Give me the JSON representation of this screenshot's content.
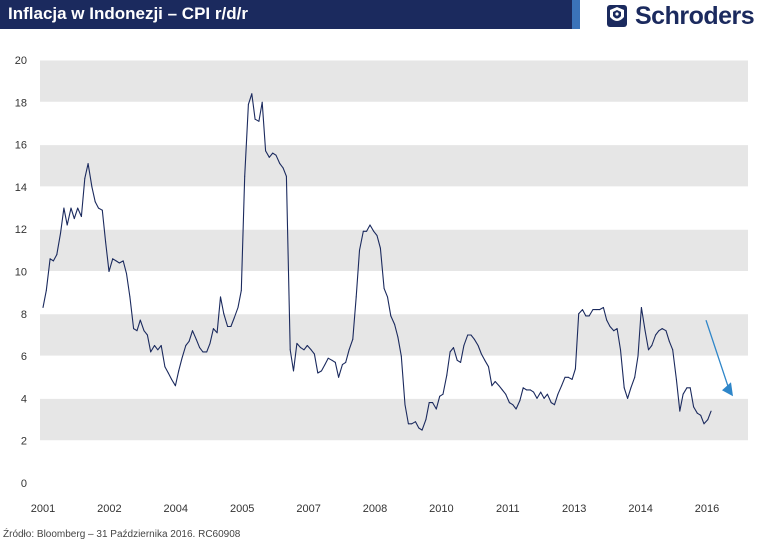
{
  "header": {
    "title": "Inflacja w Indonezji – CPI r/d/r",
    "brand": "Schroders"
  },
  "footer": {
    "source": "Źródło: Bloomberg – 31 Października 2016. RC60908"
  },
  "colors": {
    "header_bg": "#1b2a5e",
    "accent": "#3b73b9",
    "line": "#1b2a5e",
    "band": "#e6e6e6",
    "arrow": "#2e86c9"
  },
  "icons": [
    "crest-icon",
    "arrow-down-icon"
  ],
  "chart_data": {
    "type": "line",
    "title": "Inflacja w Indonezji – CPI r/d/r",
    "xlabel": "",
    "ylabel": "",
    "ylim": [
      0,
      20
    ],
    "yticks": [
      "0",
      "2",
      "4",
      "6",
      "8",
      "10",
      "12",
      "14",
      "16",
      "18",
      "20"
    ],
    "xticks": [
      "2001",
      "2002",
      "2004",
      "2005",
      "2007",
      "2008",
      "2010",
      "2011",
      "2013",
      "2014",
      "2016"
    ],
    "xlim": [
      2001.0,
      2016.83
    ],
    "grid": "alternating horizontal bands",
    "legend": "none",
    "annotation": "downward arrow pointing to latest readings",
    "series": [
      {
        "values": [
          [
            2001.0,
            8.3
          ],
          [
            2001.08,
            9.1
          ],
          [
            2001.17,
            10.6
          ],
          [
            2001.25,
            10.5
          ],
          [
            2001.33,
            10.8
          ],
          [
            2001.42,
            11.8
          ],
          [
            2001.5,
            13.0
          ],
          [
            2001.58,
            12.2
          ],
          [
            2001.67,
            13.0
          ],
          [
            2001.75,
            12.5
          ],
          [
            2001.83,
            13.0
          ],
          [
            2001.92,
            12.6
          ],
          [
            2002.0,
            14.4
          ],
          [
            2002.08,
            15.1
          ],
          [
            2002.17,
            14.0
          ],
          [
            2002.25,
            13.3
          ],
          [
            2002.33,
            13.0
          ],
          [
            2002.42,
            12.9
          ],
          [
            2002.5,
            11.4
          ],
          [
            2002.58,
            10.0
          ],
          [
            2002.67,
            10.6
          ],
          [
            2002.75,
            10.5
          ],
          [
            2002.83,
            10.4
          ],
          [
            2002.92,
            10.5
          ],
          [
            2003.0,
            9.9
          ],
          [
            2003.08,
            8.8
          ],
          [
            2003.17,
            7.3
          ],
          [
            2003.25,
            7.2
          ],
          [
            2003.33,
            7.7
          ],
          [
            2003.42,
            7.2
          ],
          [
            2003.5,
            7.0
          ],
          [
            2003.58,
            6.2
          ],
          [
            2003.67,
            6.5
          ],
          [
            2003.75,
            6.3
          ],
          [
            2003.83,
            6.5
          ],
          [
            2003.92,
            5.5
          ],
          [
            2004.0,
            5.2
          ],
          [
            2004.08,
            4.9
          ],
          [
            2004.17,
            4.6
          ],
          [
            2004.25,
            5.3
          ],
          [
            2004.33,
            5.9
          ],
          [
            2004.42,
            6.5
          ],
          [
            2004.5,
            6.7
          ],
          [
            2004.58,
            7.2
          ],
          [
            2004.67,
            6.8
          ],
          [
            2004.75,
            6.4
          ],
          [
            2004.83,
            6.2
          ],
          [
            2004.92,
            6.2
          ],
          [
            2005.0,
            6.6
          ],
          [
            2005.08,
            7.3
          ],
          [
            2005.17,
            7.1
          ],
          [
            2005.25,
            8.8
          ],
          [
            2005.33,
            8.0
          ],
          [
            2005.42,
            7.4
          ],
          [
            2005.5,
            7.4
          ],
          [
            2005.58,
            7.8
          ],
          [
            2005.67,
            8.3
          ],
          [
            2005.75,
            9.1
          ],
          [
            2005.83,
            14.5
          ],
          [
            2005.92,
            17.9
          ],
          [
            2006.0,
            18.4
          ],
          [
            2006.08,
            17.2
          ],
          [
            2006.17,
            17.1
          ],
          [
            2006.25,
            18.0
          ],
          [
            2006.33,
            15.7
          ],
          [
            2006.42,
            15.4
          ],
          [
            2006.5,
            15.6
          ],
          [
            2006.58,
            15.5
          ],
          [
            2006.67,
            15.1
          ],
          [
            2006.75,
            14.9
          ],
          [
            2006.83,
            14.5
          ],
          [
            2006.92,
            6.3
          ],
          [
            2007.0,
            5.3
          ],
          [
            2007.08,
            6.6
          ],
          [
            2007.17,
            6.4
          ],
          [
            2007.25,
            6.3
          ],
          [
            2007.33,
            6.5
          ],
          [
            2007.42,
            6.3
          ],
          [
            2007.5,
            6.1
          ],
          [
            2007.58,
            5.2
          ],
          [
            2007.67,
            5.3
          ],
          [
            2007.75,
            5.6
          ],
          [
            2007.83,
            5.9
          ],
          [
            2007.92,
            5.8
          ],
          [
            2008.0,
            5.7
          ],
          [
            2008.08,
            5.0
          ],
          [
            2008.17,
            5.6
          ],
          [
            2008.25,
            5.7
          ],
          [
            2008.33,
            6.3
          ],
          [
            2008.42,
            6.8
          ],
          [
            2008.5,
            8.8
          ],
          [
            2008.58,
            11.0
          ],
          [
            2008.67,
            11.9
          ],
          [
            2008.75,
            11.9
          ],
          [
            2008.83,
            12.2
          ],
          [
            2008.92,
            11.9
          ],
          [
            2009.0,
            11.7
          ],
          [
            2009.08,
            11.1
          ],
          [
            2009.17,
            9.2
          ],
          [
            2009.25,
            8.8
          ],
          [
            2009.33,
            7.9
          ],
          [
            2009.42,
            7.5
          ],
          [
            2009.5,
            6.9
          ],
          [
            2009.58,
            6.0
          ],
          [
            2009.67,
            3.7
          ],
          [
            2009.75,
            2.8
          ],
          [
            2009.83,
            2.8
          ],
          [
            2009.92,
            2.9
          ],
          [
            2010.0,
            2.6
          ],
          [
            2010.08,
            2.5
          ],
          [
            2010.17,
            3.0
          ],
          [
            2010.25,
            3.8
          ],
          [
            2010.33,
            3.8
          ],
          [
            2010.42,
            3.5
          ],
          [
            2010.5,
            4.1
          ],
          [
            2010.58,
            4.2
          ],
          [
            2010.67,
            5.1
          ],
          [
            2010.75,
            6.2
          ],
          [
            2010.83,
            6.4
          ],
          [
            2010.92,
            5.8
          ],
          [
            2011.0,
            5.7
          ],
          [
            2011.08,
            6.5
          ],
          [
            2011.17,
            7.0
          ],
          [
            2011.25,
            7.0
          ],
          [
            2011.33,
            6.8
          ],
          [
            2011.42,
            6.5
          ],
          [
            2011.5,
            6.1
          ],
          [
            2011.58,
            5.8
          ],
          [
            2011.67,
            5.5
          ],
          [
            2011.75,
            4.6
          ],
          [
            2011.83,
            4.8
          ],
          [
            2011.92,
            4.6
          ],
          [
            2012.0,
            4.4
          ],
          [
            2012.08,
            4.2
          ],
          [
            2012.17,
            3.8
          ],
          [
            2012.25,
            3.7
          ],
          [
            2012.33,
            3.5
          ],
          [
            2012.42,
            3.9
          ],
          [
            2012.5,
            4.5
          ],
          [
            2012.58,
            4.4
          ],
          [
            2012.67,
            4.4
          ],
          [
            2012.75,
            4.3
          ],
          [
            2012.83,
            4.0
          ],
          [
            2012.92,
            4.3
          ],
          [
            2013.0,
            4.0
          ],
          [
            2013.08,
            4.2
          ],
          [
            2013.17,
            3.8
          ],
          [
            2013.25,
            3.7
          ],
          [
            2013.33,
            4.2
          ],
          [
            2013.42,
            4.6
          ],
          [
            2013.5,
            5.0
          ],
          [
            2013.58,
            5.0
          ],
          [
            2013.67,
            4.9
          ],
          [
            2013.75,
            5.4
          ],
          [
            2013.83,
            8.0
          ],
          [
            2013.92,
            8.2
          ],
          [
            2014.0,
            7.9
          ],
          [
            2014.08,
            7.9
          ],
          [
            2014.17,
            8.2
          ],
          [
            2014.25,
            8.2
          ],
          [
            2014.33,
            8.2
          ],
          [
            2014.42,
            8.3
          ],
          [
            2014.5,
            7.7
          ],
          [
            2014.58,
            7.4
          ],
          [
            2014.67,
            7.2
          ],
          [
            2014.75,
            7.3
          ],
          [
            2014.83,
            6.3
          ],
          [
            2014.92,
            4.5
          ],
          [
            2015.0,
            4.0
          ],
          [
            2015.08,
            4.5
          ],
          [
            2015.17,
            5.0
          ],
          [
            2015.25,
            6.0
          ],
          [
            2015.33,
            8.3
          ],
          [
            2015.42,
            7.2
          ],
          [
            2015.5,
            6.3
          ],
          [
            2015.58,
            6.5
          ],
          [
            2015.67,
            7.0
          ],
          [
            2015.75,
            7.2
          ],
          [
            2015.83,
            7.3
          ],
          [
            2015.92,
            7.2
          ],
          [
            2016.0,
            6.7
          ],
          [
            2016.08,
            6.3
          ],
          [
            2016.17,
            4.9
          ],
          [
            2016.25,
            3.4
          ],
          [
            2016.33,
            4.2
          ],
          [
            2016.42,
            4.5
          ],
          [
            2016.5,
            4.5
          ],
          [
            2016.58,
            3.6
          ],
          [
            2016.67,
            3.3
          ],
          [
            2016.75,
            3.2
          ],
          [
            2016.83,
            2.8
          ],
          [
            2016.92,
            3.0
          ],
          [
            2017.0,
            3.4
          ]
        ]
      }
    ]
  }
}
